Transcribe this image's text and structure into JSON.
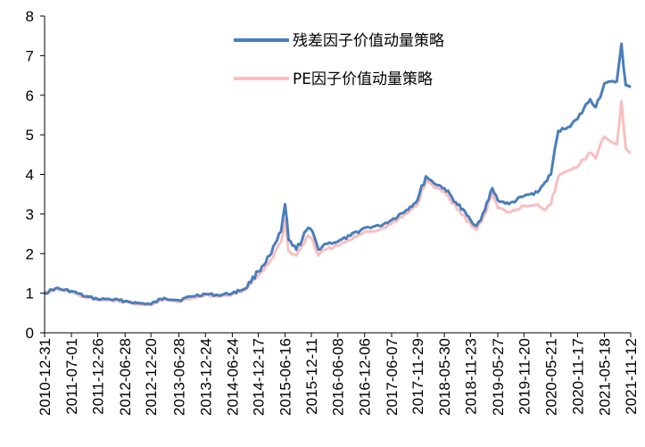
{
  "chart_data": {
    "type": "line",
    "title": "",
    "xlabel": "",
    "ylabel": "",
    "ylim": [
      0,
      8
    ],
    "yticks": [
      0,
      1,
      2,
      3,
      4,
      5,
      6,
      7,
      8
    ],
    "xlim": [
      "2010-12-31",
      "2021-11-12"
    ],
    "xticks": [
      "2010-12-31",
      "2011-07-01",
      "2011-12-26",
      "2012-06-28",
      "2012-12-20",
      "2013-06-28",
      "2013-12-24",
      "2014-06-24",
      "2014-12-17",
      "2015-06-16",
      "2015-12-11",
      "2016-06-08",
      "2016-12-06",
      "2017-06-07",
      "2017-11-29",
      "2018-05-30",
      "2018-11-23",
      "2019-05-27",
      "2019-11-20",
      "2020-05-21",
      "2020-11-17",
      "2021-05-18",
      "2021-11-12"
    ],
    "grid": false,
    "legend_position": "top-right",
    "colors": {
      "residual": "#4a7ebb",
      "pe": "#f9bfc0"
    },
    "series": [
      {
        "name": "残差因子价值动量策略",
        "x": [
          "2010-12-31",
          "2011-03-15",
          "2011-07-01",
          "2011-10-01",
          "2011-12-26",
          "2012-03-15",
          "2012-06-28",
          "2012-09-20",
          "2012-12-20",
          "2013-03-20",
          "2013-06-28",
          "2013-09-20",
          "2013-12-24",
          "2014-03-20",
          "2014-06-24",
          "2014-09-20",
          "2014-12-17",
          "2015-03-15",
          "2015-05-20",
          "2015-06-16",
          "2015-07-10",
          "2015-09-01",
          "2015-11-20",
          "2015-12-20",
          "2016-01-28",
          "2016-03-15",
          "2016-06-08",
          "2016-09-01",
          "2016-12-06",
          "2017-03-15",
          "2017-06-07",
          "2017-09-15",
          "2017-11-29",
          "2018-01-25",
          "2018-03-15",
          "2018-05-30",
          "2018-08-15",
          "2018-11-23",
          "2019-01-03",
          "2019-03-01",
          "2019-04-20",
          "2019-05-27",
          "2019-08-10",
          "2019-11-20",
          "2020-02-20",
          "2020-04-10",
          "2020-05-21",
          "2020-07-10",
          "2020-09-15",
          "2020-11-17",
          "2021-02-10",
          "2021-03-20",
          "2021-05-18",
          "2021-08-10",
          "2021-09-10",
          "2021-10-10",
          "2021-11-12"
        ],
        "values": [
          1.0,
          1.12,
          1.05,
          0.92,
          0.85,
          0.85,
          0.8,
          0.75,
          0.72,
          0.88,
          0.82,
          0.92,
          0.98,
          0.95,
          1.0,
          1.12,
          1.55,
          2.0,
          2.55,
          3.25,
          2.35,
          2.1,
          2.65,
          2.55,
          2.1,
          2.25,
          2.3,
          2.45,
          2.65,
          2.7,
          2.85,
          3.1,
          3.35,
          3.95,
          3.8,
          3.65,
          3.3,
          2.85,
          2.7,
          3.1,
          3.65,
          3.35,
          3.25,
          3.45,
          3.55,
          3.8,
          4.0,
          5.1,
          5.2,
          5.4,
          5.9,
          5.7,
          6.3,
          6.35,
          7.3,
          6.25,
          6.2
        ]
      },
      {
        "name": "PE因子价值动量策略",
        "x": [
          "2010-12-31",
          "2011-03-15",
          "2011-07-01",
          "2011-10-01",
          "2011-12-26",
          "2012-03-15",
          "2012-06-28",
          "2012-09-20",
          "2012-12-20",
          "2013-03-20",
          "2013-06-28",
          "2013-09-20",
          "2013-12-24",
          "2014-03-20",
          "2014-06-24",
          "2014-09-20",
          "2014-12-17",
          "2015-03-15",
          "2015-05-20",
          "2015-06-16",
          "2015-07-10",
          "2015-09-01",
          "2015-11-20",
          "2015-12-20",
          "2016-01-28",
          "2016-03-15",
          "2016-06-08",
          "2016-09-01",
          "2016-12-06",
          "2017-03-15",
          "2017-06-07",
          "2017-09-15",
          "2017-11-29",
          "2018-01-25",
          "2018-03-15",
          "2018-05-30",
          "2018-08-15",
          "2018-11-23",
          "2019-01-03",
          "2019-03-01",
          "2019-04-20",
          "2019-05-27",
          "2019-08-10",
          "2019-11-20",
          "2020-02-20",
          "2020-04-10",
          "2020-05-21",
          "2020-07-10",
          "2020-09-15",
          "2020-11-17",
          "2021-02-10",
          "2021-03-20",
          "2021-05-18",
          "2021-08-10",
          "2021-09-10",
          "2021-10-10",
          "2021-11-12"
        ],
        "values": [
          1.0,
          1.1,
          1.03,
          0.9,
          0.83,
          0.83,
          0.78,
          0.73,
          0.7,
          0.85,
          0.78,
          0.88,
          0.95,
          0.92,
          0.97,
          1.08,
          1.45,
          1.85,
          2.3,
          2.85,
          2.05,
          1.95,
          2.45,
          2.35,
          1.95,
          2.1,
          2.2,
          2.35,
          2.55,
          2.6,
          2.75,
          3.0,
          3.25,
          3.85,
          3.7,
          3.55,
          3.2,
          2.75,
          2.6,
          3.0,
          3.55,
          3.15,
          3.05,
          3.2,
          3.25,
          3.1,
          3.25,
          3.95,
          4.1,
          4.2,
          4.55,
          4.4,
          4.95,
          4.75,
          5.85,
          4.65,
          4.55
        ]
      }
    ]
  }
}
